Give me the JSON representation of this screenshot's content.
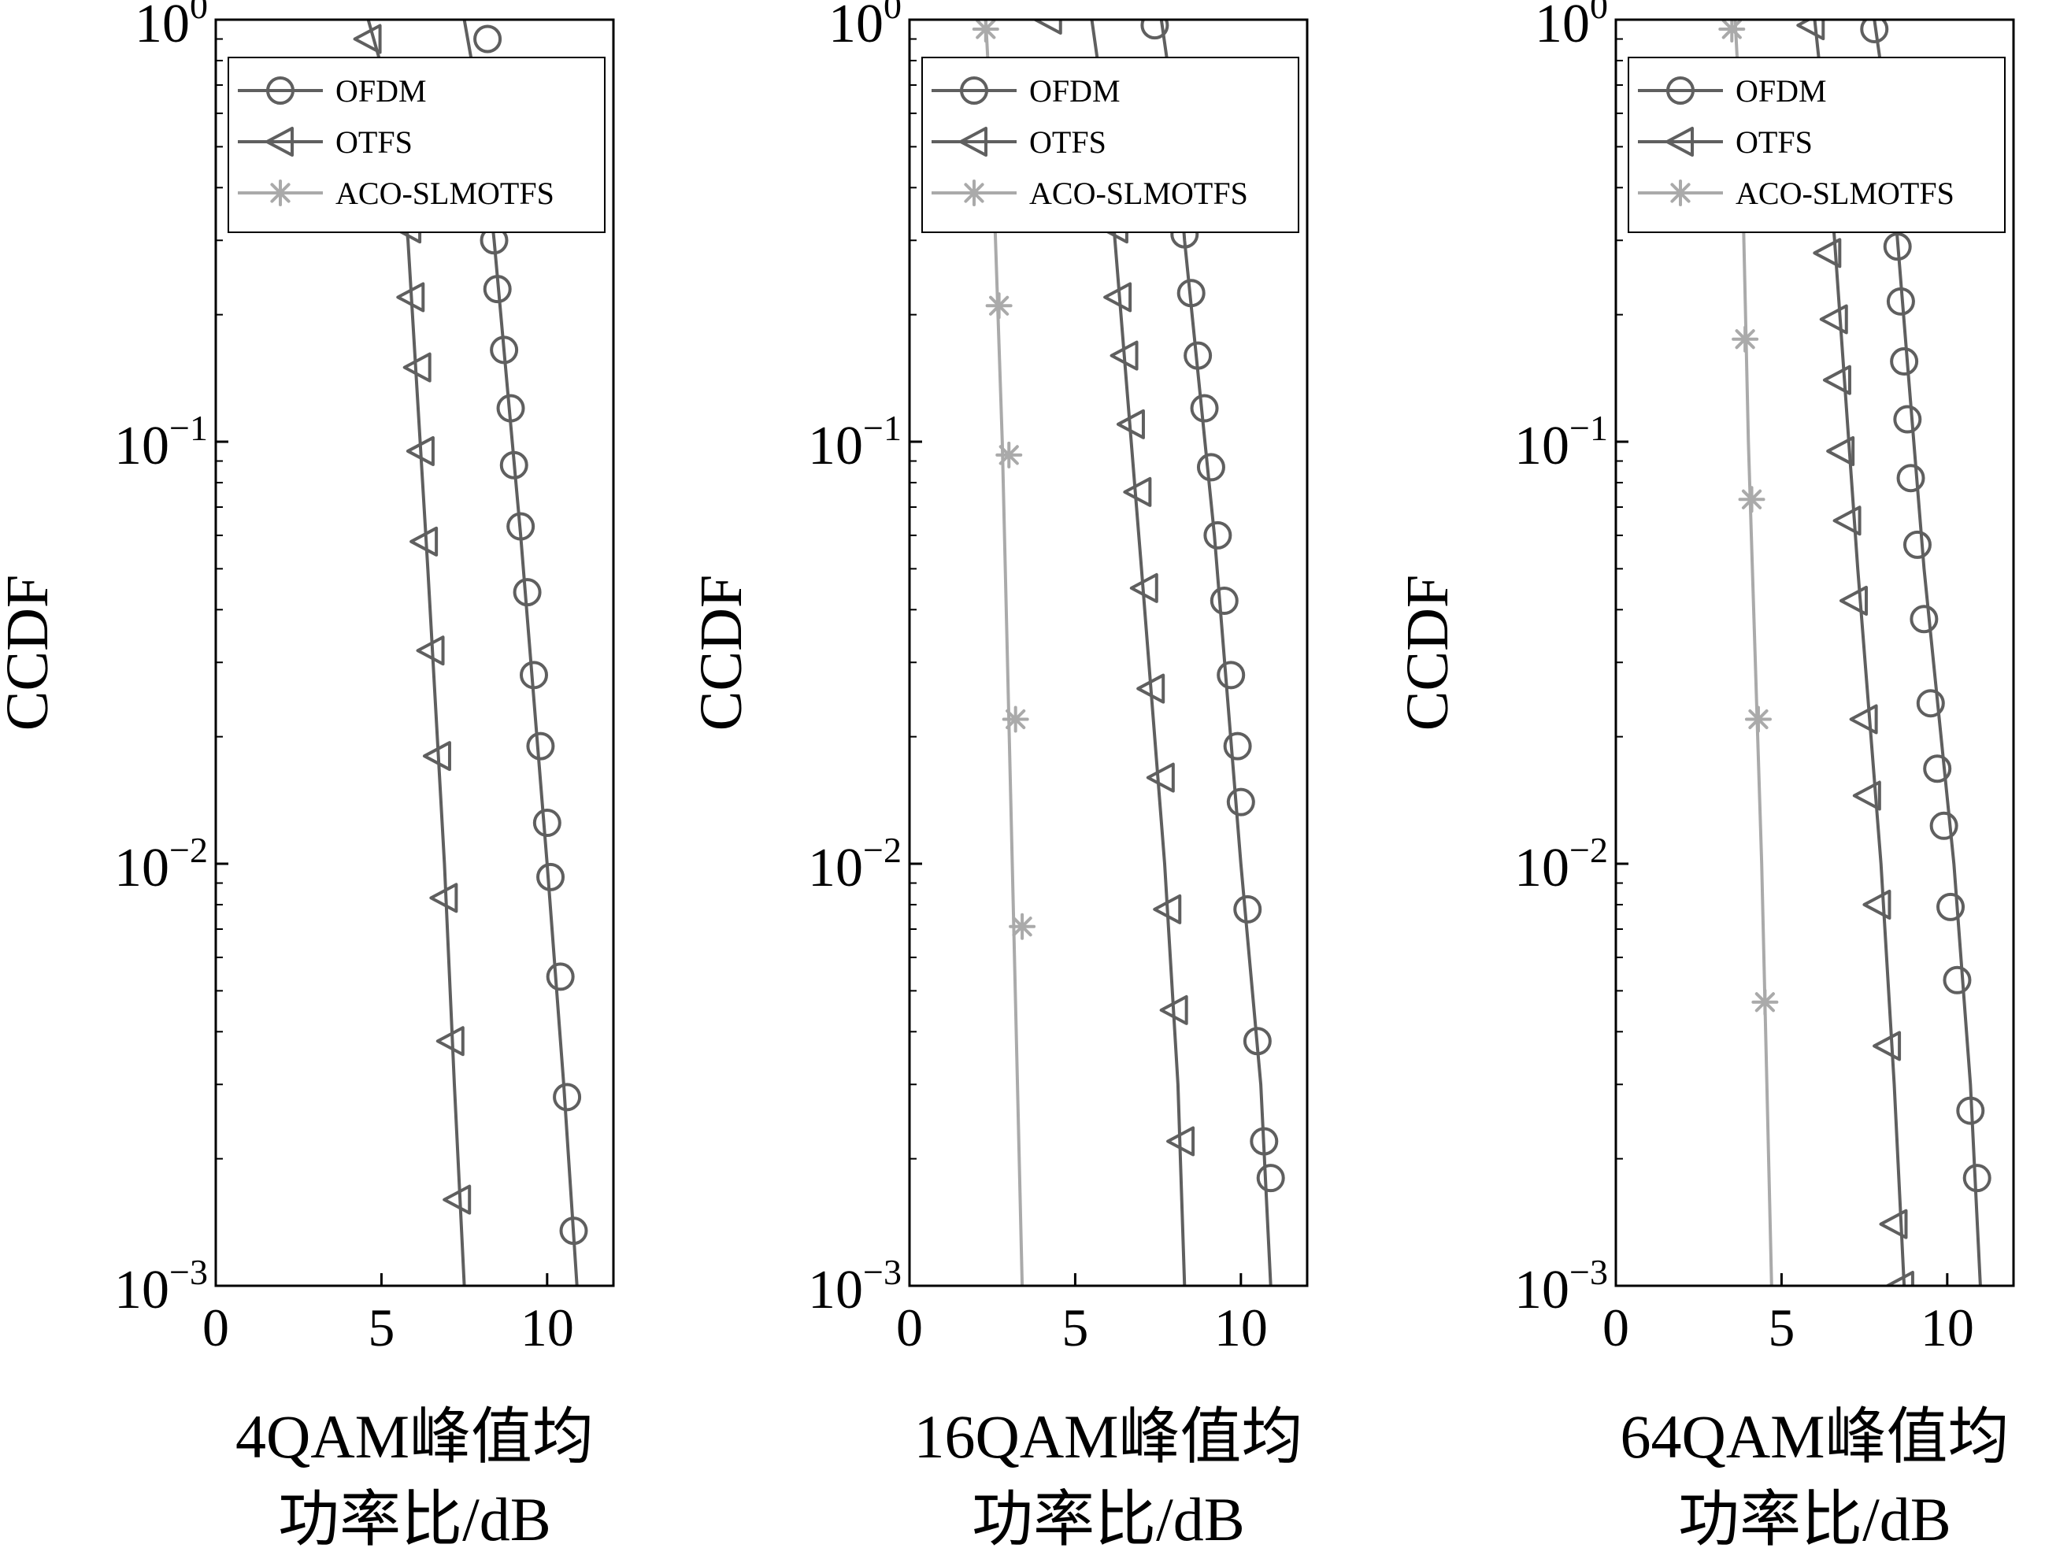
{
  "figure": {
    "style": {
      "line_color": "#5f5f5f",
      "marker_color": "#5f5f5f",
      "aco_color": "#aaaaaa",
      "axis_color": "#000000",
      "background": "#ffffff"
    },
    "legend_labels": [
      "OFDM",
      "OTFS",
      "ACO-SLMOTFS"
    ]
  },
  "chart_data": [
    {
      "type": "line",
      "ylabel": "CCDF",
      "xlabel_lines": [
        "4QAM峰值均",
        "功率比/dB"
      ],
      "yscale": "log",
      "xlim": [
        0,
        12
      ],
      "ylim": [
        0.001,
        1
      ],
      "xticks": [
        0,
        5,
        10
      ],
      "yticks": [
        {
          "value": 1,
          "base": "10",
          "exp": "0"
        },
        {
          "value": 0.1,
          "base": "10",
          "exp": "−1"
        },
        {
          "value": 0.01,
          "base": "10",
          "exp": "−2"
        },
        {
          "value": 0.001,
          "base": "10",
          "exp": "−3"
        }
      ],
      "legend": "top-left",
      "series": [
        {
          "name": "OFDM",
          "marker": "circle",
          "color": "#5f5f5f",
          "line": [
            [
              7.5,
              1.0
            ],
            [
              8.0,
              0.6
            ],
            [
              8.4,
              0.3
            ],
            [
              9.2,
              0.06
            ],
            [
              10.0,
              0.01
            ],
            [
              10.5,
              0.003
            ],
            [
              10.9,
              0.001
            ]
          ],
          "markers": [
            [
              8.2,
              0.9
            ],
            [
              8.4,
              0.3
            ],
            [
              8.5,
              0.23
            ],
            [
              8.7,
              0.165
            ],
            [
              8.9,
              0.12
            ],
            [
              9.0,
              0.088
            ],
            [
              9.2,
              0.063
            ],
            [
              9.4,
              0.044
            ],
            [
              9.6,
              0.028
            ],
            [
              9.8,
              0.019
            ],
            [
              10.0,
              0.0125
            ],
            [
              10.1,
              0.0093
            ],
            [
              10.4,
              0.0054
            ],
            [
              10.6,
              0.0028
            ],
            [
              10.8,
              0.00135
            ]
          ]
        },
        {
          "name": "OTFS",
          "marker": "triangle-left",
          "color": "#5f5f5f",
          "line": [
            [
              4.6,
              1.0
            ],
            [
              5.4,
              0.6
            ],
            [
              5.8,
              0.3
            ],
            [
              6.4,
              0.05
            ],
            [
              6.9,
              0.01
            ],
            [
              7.2,
              0.003
            ],
            [
              7.5,
              0.001
            ]
          ],
          "markers": [
            [
              4.6,
              0.9
            ],
            [
              5.8,
              0.32
            ],
            [
              5.9,
              0.22
            ],
            [
              6.1,
              0.15
            ],
            [
              6.2,
              0.095
            ],
            [
              6.3,
              0.058
            ],
            [
              6.5,
              0.032
            ],
            [
              6.7,
              0.018
            ],
            [
              6.9,
              0.0083
            ],
            [
              7.1,
              0.0038
            ],
            [
              7.3,
              0.0016
            ]
          ]
        },
        {
          "name": "ACO-SLMOTFS",
          "marker": "asterisk",
          "color": "#aaaaaa",
          "line": [],
          "markers": []
        }
      ]
    },
    {
      "type": "line",
      "ylabel": "CCDF",
      "xlabel_lines": [
        "16QAM峰值均",
        "功率比/dB"
      ],
      "yscale": "log",
      "xlim": [
        0,
        12
      ],
      "ylim": [
        0.001,
        1
      ],
      "xticks": [
        0,
        5,
        10
      ],
      "yticks": [
        {
          "value": 1,
          "base": "10",
          "exp": "0"
        },
        {
          "value": 0.1,
          "base": "10",
          "exp": "−1"
        },
        {
          "value": 0.01,
          "base": "10",
          "exp": "−2"
        },
        {
          "value": 0.001,
          "base": "10",
          "exp": "−3"
        }
      ],
      "legend": "top-left",
      "series": [
        {
          "name": "OFDM",
          "marker": "circle",
          "color": "#5f5f5f",
          "line": [
            [
              7.6,
              1.0
            ],
            [
              8.0,
              0.6
            ],
            [
              8.3,
              0.3
            ],
            [
              9.2,
              0.06
            ],
            [
              10.0,
              0.01
            ],
            [
              10.6,
              0.003
            ],
            [
              10.9,
              0.001
            ]
          ],
          "markers": [
            [
              7.4,
              0.97
            ],
            [
              8.3,
              0.31
            ],
            [
              8.5,
              0.225
            ],
            [
              8.7,
              0.16
            ],
            [
              8.9,
              0.12
            ],
            [
              9.1,
              0.087
            ],
            [
              9.3,
              0.06
            ],
            [
              9.5,
              0.042
            ],
            [
              9.7,
              0.028
            ],
            [
              9.9,
              0.019
            ],
            [
              10.0,
              0.014
            ],
            [
              10.2,
              0.0078
            ],
            [
              10.5,
              0.0038
            ],
            [
              10.7,
              0.0022
            ],
            [
              10.9,
              0.0018
            ]
          ]
        },
        {
          "name": "OTFS",
          "marker": "triangle-left",
          "color": "#5f5f5f",
          "line": [
            [
              5.5,
              1.0
            ],
            [
              5.9,
              0.6
            ],
            [
              6.2,
              0.3
            ],
            [
              7.0,
              0.05
            ],
            [
              7.7,
              0.01
            ],
            [
              8.1,
              0.003
            ],
            [
              8.3,
              0.001
            ]
          ],
          "markers": [
            [
              4.2,
              1.0
            ],
            [
              6.2,
              0.32
            ],
            [
              6.3,
              0.22
            ],
            [
              6.5,
              0.16
            ],
            [
              6.7,
              0.11
            ],
            [
              6.9,
              0.076
            ],
            [
              7.1,
              0.045
            ],
            [
              7.3,
              0.026
            ],
            [
              7.6,
              0.016
            ],
            [
              7.8,
              0.0078
            ],
            [
              8.0,
              0.0045
            ],
            [
              8.2,
              0.0022
            ]
          ]
        },
        {
          "name": "ACO-SLMOTFS",
          "marker": "asterisk",
          "color": "#aaaaaa",
          "line": [
            [
              2.3,
              1.0
            ],
            [
              2.5,
              0.5
            ],
            [
              2.8,
              0.1
            ],
            [
              3.1,
              0.01
            ],
            [
              3.4,
              0.001
            ]
          ],
          "markers": [
            [
              2.3,
              0.95
            ],
            [
              2.7,
              0.21
            ],
            [
              3.0,
              0.093
            ],
            [
              3.2,
              0.022
            ],
            [
              3.4,
              0.0071
            ]
          ]
        }
      ]
    },
    {
      "type": "line",
      "ylabel": "CCDF",
      "xlabel_lines": [
        "64QAM峰值均",
        "功率比/dB"
      ],
      "yscale": "log",
      "xlim": [
        0,
        12
      ],
      "ylim": [
        0.001,
        1
      ],
      "xticks": [
        0,
        5,
        10
      ],
      "yticks": [
        {
          "value": 1,
          "base": "10",
          "exp": "0"
        },
        {
          "value": 0.1,
          "base": "10",
          "exp": "−1"
        },
        {
          "value": 0.01,
          "base": "10",
          "exp": "−2"
        },
        {
          "value": 0.001,
          "base": "10",
          "exp": "−3"
        }
      ],
      "legend": "top-left",
      "series": [
        {
          "name": "OFDM",
          "marker": "circle",
          "color": "#5f5f5f",
          "line": [
            [
              7.8,
              1.0
            ],
            [
              8.2,
              0.6
            ],
            [
              8.5,
              0.3
            ],
            [
              9.3,
              0.05
            ],
            [
              10.2,
              0.01
            ],
            [
              10.7,
              0.003
            ],
            [
              11.0,
              0.001
            ]
          ],
          "markers": [
            [
              7.8,
              0.95
            ],
            [
              8.5,
              0.29
            ],
            [
              8.6,
              0.215
            ],
            [
              8.7,
              0.155
            ],
            [
              8.8,
              0.113
            ],
            [
              8.9,
              0.082
            ],
            [
              9.1,
              0.057
            ],
            [
              9.3,
              0.038
            ],
            [
              9.5,
              0.024
            ],
            [
              9.7,
              0.0168
            ],
            [
              9.9,
              0.0123
            ],
            [
              10.1,
              0.0079
            ],
            [
              10.3,
              0.0053
            ],
            [
              10.7,
              0.0026
            ],
            [
              10.9,
              0.0018
            ]
          ]
        },
        {
          "name": "OTFS",
          "marker": "triangle-left",
          "color": "#5f5f5f",
          "line": [
            [
              6.0,
              1.0
            ],
            [
              6.3,
              0.6
            ],
            [
              6.6,
              0.3
            ],
            [
              7.3,
              0.05
            ],
            [
              8.0,
              0.01
            ],
            [
              8.4,
              0.003
            ],
            [
              8.7,
              0.001
            ]
          ],
          "markers": [
            [
              5.9,
              0.97
            ],
            [
              6.4,
              0.28
            ],
            [
              6.6,
              0.195
            ],
            [
              6.7,
              0.14
            ],
            [
              6.8,
              0.095
            ],
            [
              7.0,
              0.065
            ],
            [
              7.2,
              0.042
            ],
            [
              7.5,
              0.022
            ],
            [
              7.6,
              0.0145
            ],
            [
              7.9,
              0.008
            ],
            [
              8.2,
              0.0037
            ],
            [
              8.4,
              0.0014
            ],
            [
              8.6,
              0.001
            ]
          ]
        },
        {
          "name": "ACO-SLMOTFS",
          "marker": "asterisk",
          "color": "#aaaaaa",
          "line": [
            [
              3.6,
              1.0
            ],
            [
              3.8,
              0.5
            ],
            [
              4.0,
              0.1
            ],
            [
              4.4,
              0.01
            ],
            [
              4.7,
              0.001
            ]
          ],
          "markers": [
            [
              3.5,
              0.95
            ],
            [
              3.9,
              0.175
            ],
            [
              4.1,
              0.073
            ],
            [
              4.3,
              0.022
            ],
            [
              4.5,
              0.0047
            ]
          ]
        }
      ]
    }
  ]
}
